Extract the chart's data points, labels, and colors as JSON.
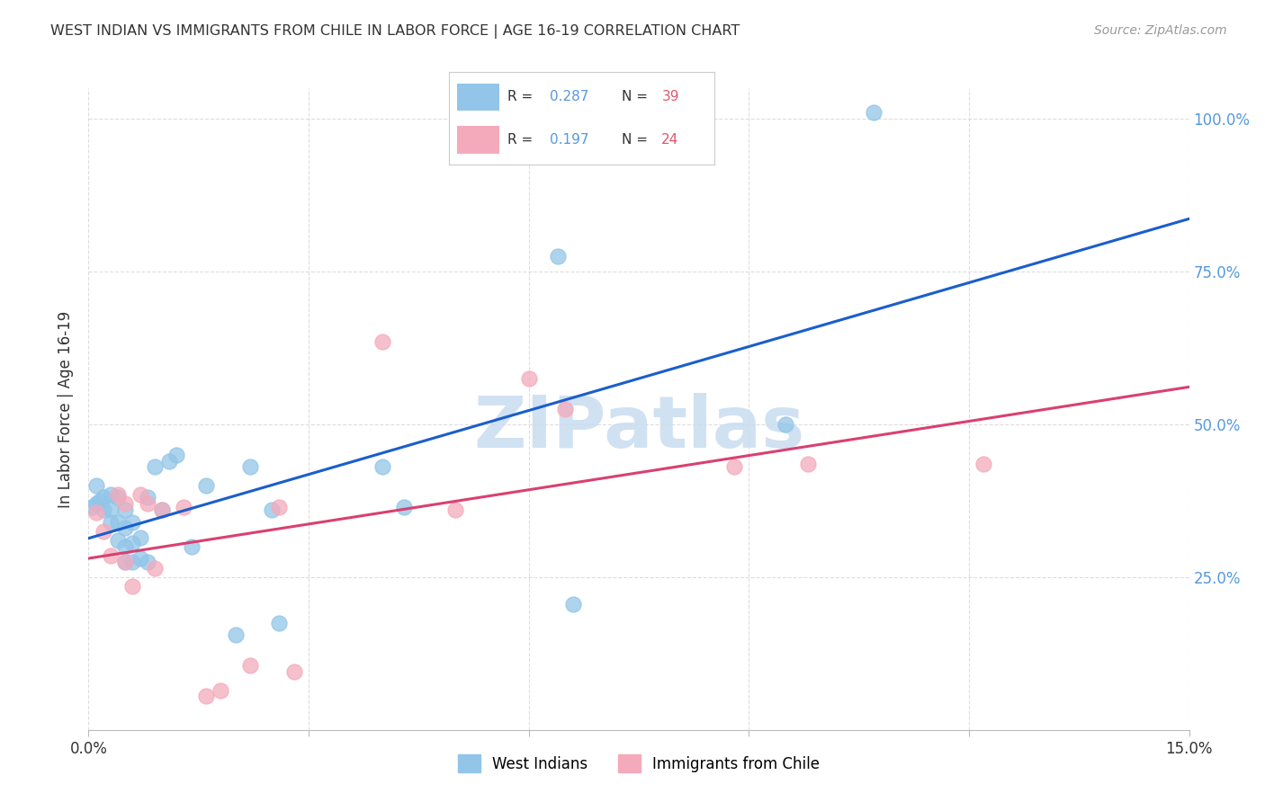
{
  "title": "WEST INDIAN VS IMMIGRANTS FROM CHILE IN LABOR FORCE | AGE 16-19 CORRELATION CHART",
  "source": "Source: ZipAtlas.com",
  "ylabel": "In Labor Force | Age 16-19",
  "xlim": [
    0.0,
    0.15
  ],
  "ylim": [
    0.0,
    1.05
  ],
  "xtick_vals": [
    0.0,
    0.03,
    0.06,
    0.09,
    0.12,
    0.15
  ],
  "xtick_labels": [
    "0.0%",
    "",
    "",
    "",
    "",
    "15.0%"
  ],
  "ytick_vals": [
    0.25,
    0.5,
    0.75,
    1.0
  ],
  "ytick_labels": [
    "25.0%",
    "50.0%",
    "75.0%",
    "100.0%"
  ],
  "blue_scatter_color": "#92C5E8",
  "pink_scatter_color": "#F4AABB",
  "blue_line_color": "#1A5ECC",
  "pink_line_color": "#D94070",
  "text_color": "#333333",
  "axis_label_color": "#5599DD",
  "source_color": "#999999",
  "grid_color": "#DDDDDD",
  "watermark": "ZIPatlas",
  "watermark_color": "#C8DCF0",
  "west_indians_x": [
    0.0005,
    0.001,
    0.001,
    0.0015,
    0.002,
    0.002,
    0.003,
    0.003,
    0.003,
    0.004,
    0.004,
    0.004,
    0.005,
    0.005,
    0.005,
    0.005,
    0.006,
    0.006,
    0.006,
    0.007,
    0.007,
    0.008,
    0.008,
    0.009,
    0.01,
    0.011,
    0.012,
    0.014,
    0.016,
    0.02,
    0.022,
    0.025,
    0.026,
    0.04,
    0.043,
    0.064,
    0.066,
    0.095,
    0.107
  ],
  "west_indians_y": [
    0.365,
    0.37,
    0.4,
    0.375,
    0.36,
    0.38,
    0.34,
    0.36,
    0.385,
    0.31,
    0.34,
    0.38,
    0.275,
    0.3,
    0.33,
    0.36,
    0.275,
    0.305,
    0.34,
    0.28,
    0.315,
    0.275,
    0.38,
    0.43,
    0.36,
    0.44,
    0.45,
    0.3,
    0.4,
    0.155,
    0.43,
    0.36,
    0.175,
    0.43,
    0.365,
    0.775,
    0.205,
    0.5,
    1.01
  ],
  "chile_x": [
    0.001,
    0.002,
    0.003,
    0.004,
    0.005,
    0.005,
    0.006,
    0.007,
    0.008,
    0.009,
    0.01,
    0.013,
    0.016,
    0.018,
    0.022,
    0.026,
    0.028,
    0.04,
    0.05,
    0.06,
    0.065,
    0.088,
    0.098,
    0.122
  ],
  "chile_y": [
    0.355,
    0.325,
    0.285,
    0.385,
    0.275,
    0.37,
    0.235,
    0.385,
    0.37,
    0.265,
    0.36,
    0.365,
    0.055,
    0.065,
    0.105,
    0.365,
    0.095,
    0.635,
    0.36,
    0.575,
    0.525,
    0.43,
    0.435,
    0.435
  ],
  "background_color": "#FFFFFF",
  "legend_r1": "0.287",
  "legend_n1": "39",
  "legend_r2": "0.197",
  "legend_n2": "24"
}
